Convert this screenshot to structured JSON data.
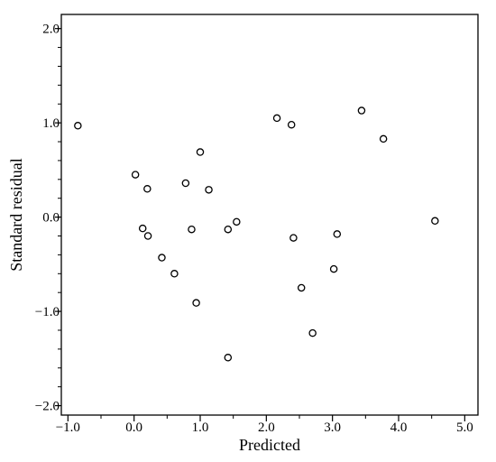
{
  "chart_data": {
    "type": "scatter",
    "title": "",
    "xlabel": "Predicted",
    "ylabel": "Standard residual",
    "xlim": [
      -1.1,
      5.2
    ],
    "ylim": [
      -2.1,
      2.15
    ],
    "grid": false,
    "x_ticks": [
      -1.0,
      0.0,
      1.0,
      2.0,
      3.0,
      4.0,
      5.0
    ],
    "y_ticks": [
      -2.0,
      -1.0,
      0.0,
      1.0,
      2.0
    ],
    "x_tick_labels": [
      "−1.0",
      "0.0",
      "1.0",
      "2.0",
      "3.0",
      "4.0",
      "5.0"
    ],
    "y_tick_labels": [
      "−2.0",
      "−1.0",
      "0.0",
      "1.0",
      "2.0"
    ],
    "marker": "open-circle",
    "colors": {
      "marker": "#000000",
      "axis": "#000000",
      "background": "#ffffff"
    },
    "points": [
      {
        "x": -0.85,
        "y": 0.97
      },
      {
        "x": 0.02,
        "y": 0.45
      },
      {
        "x": 0.13,
        "y": -0.12
      },
      {
        "x": 0.2,
        "y": 0.3
      },
      {
        "x": 0.21,
        "y": -0.2
      },
      {
        "x": 0.42,
        "y": -0.43
      },
      {
        "x": 0.61,
        "y": -0.6
      },
      {
        "x": 0.78,
        "y": 0.36
      },
      {
        "x": 0.87,
        "y": -0.13
      },
      {
        "x": 0.94,
        "y": -0.91
      },
      {
        "x": 1.0,
        "y": 0.69
      },
      {
        "x": 1.13,
        "y": 0.29
      },
      {
        "x": 1.42,
        "y": -0.13
      },
      {
        "x": 1.42,
        "y": -1.49
      },
      {
        "x": 1.55,
        "y": -0.05
      },
      {
        "x": 2.16,
        "y": 1.05
      },
      {
        "x": 2.38,
        "y": 0.98
      },
      {
        "x": 2.41,
        "y": -0.22
      },
      {
        "x": 2.53,
        "y": -0.75
      },
      {
        "x": 2.7,
        "y": -1.23
      },
      {
        "x": 3.02,
        "y": -0.55
      },
      {
        "x": 3.07,
        "y": -0.18
      },
      {
        "x": 3.44,
        "y": 1.13
      },
      {
        "x": 3.77,
        "y": 0.83
      },
      {
        "x": 4.55,
        "y": -0.04
      }
    ]
  }
}
